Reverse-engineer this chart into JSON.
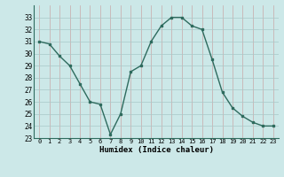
{
  "x": [
    0,
    1,
    2,
    3,
    4,
    5,
    6,
    7,
    8,
    9,
    10,
    11,
    12,
    13,
    14,
    15,
    16,
    17,
    18,
    19,
    20,
    21,
    22,
    23
  ],
  "y": [
    31.0,
    30.8,
    29.8,
    29.0,
    27.5,
    26.0,
    25.8,
    23.3,
    25.0,
    28.5,
    29.0,
    31.0,
    32.3,
    33.0,
    33.0,
    32.3,
    32.0,
    29.5,
    26.8,
    25.5,
    24.8,
    24.3,
    24.0,
    24.0
  ],
  "xlabel": "Humidex (Indice chaleur)",
  "ylim": [
    23,
    34
  ],
  "xlim": [
    -0.5,
    23.5
  ],
  "yticks": [
    23,
    24,
    25,
    26,
    27,
    28,
    29,
    30,
    31,
    32,
    33
  ],
  "xticks": [
    0,
    1,
    2,
    3,
    4,
    5,
    6,
    7,
    8,
    9,
    10,
    11,
    12,
    13,
    14,
    15,
    16,
    17,
    18,
    19,
    20,
    21,
    22,
    23
  ],
  "line_color": "#2e6b5e",
  "marker_color": "#2e6b5e",
  "bg_color": "#cce8e8",
  "grid_color_v": "#c8a8a8",
  "grid_color_h": "#a8c8c8",
  "axis_color": "#2e6b5e"
}
